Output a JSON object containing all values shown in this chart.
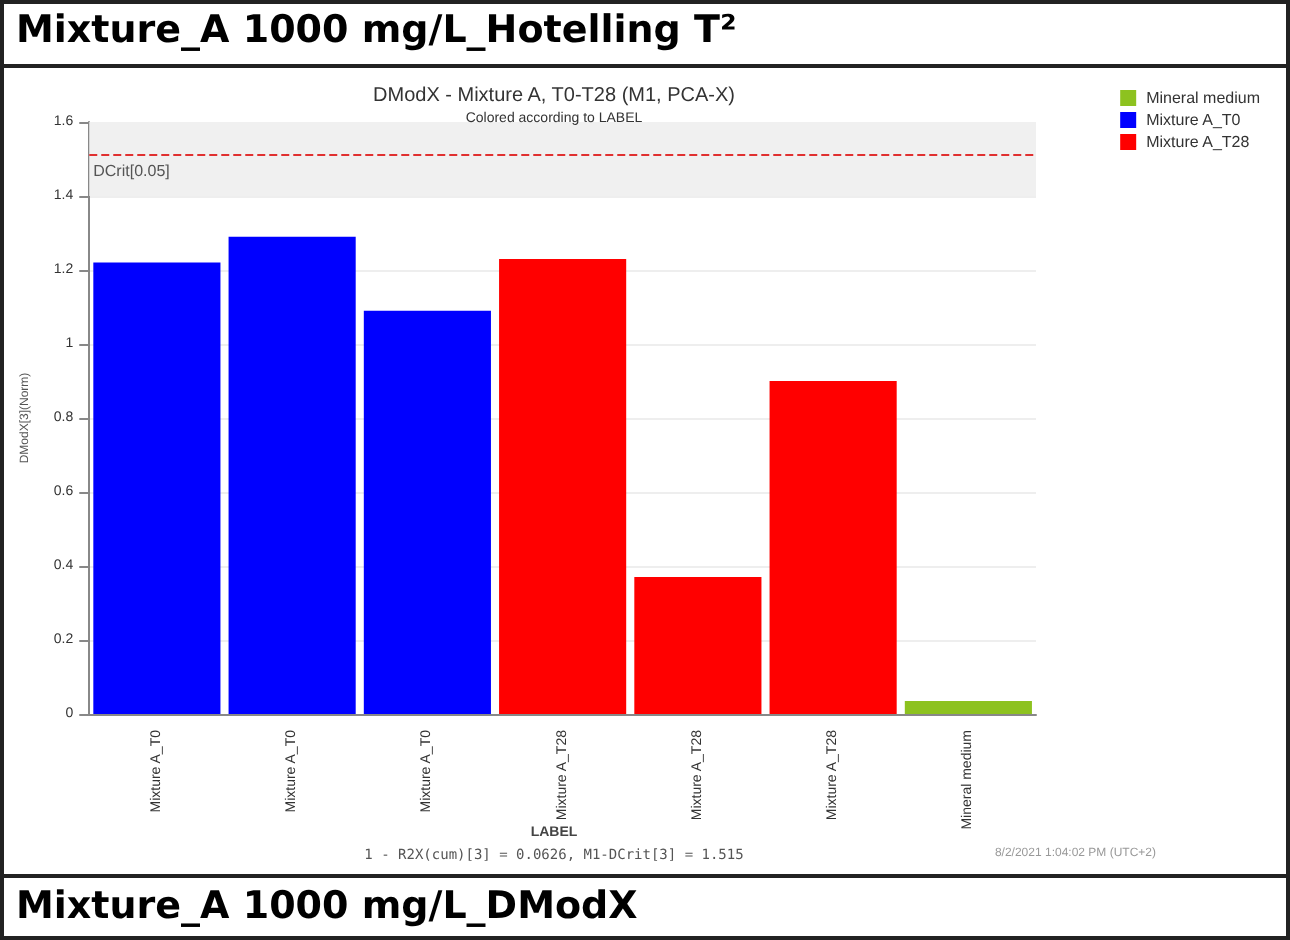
{
  "chart_data": {
    "type": "bar",
    "title": "Mixture_A 1000 mg/L_Hotelling T²",
    "subtitle": "DModX - Mixture A, T0-T28 (M1, PCA-X)",
    "xlabel": "LABEL",
    "ylabel": "DModX[3](Norm)",
    "annotations": [
      "Colored according to LABEL",
      "1 - R2X(cum)[3] = 0.0626, M1-DCrit[3] = 1.515",
      "8/2/2021 1:04:02 PM (UTC+2)",
      "Mixture_A 1000 mg/L_DModX"
    ],
    "categories": [
      "Mixture A_T0",
      "Mixture A_T0",
      "Mixture A_T0",
      "Mixture A_T28",
      "Mixture A_T28",
      "Mixture A_T28",
      "Mineral medium"
    ],
    "stacked": true,
    "series": [
      {
        "name": "Mineral medium",
        "color": "#8dc21f",
        "values": [
          null,
          null,
          null,
          null,
          null,
          null,
          0.035
        ]
      },
      {
        "name": "Mixture A_T0",
        "color": "#0000ff",
        "values": [
          1.22,
          1.29,
          1.09,
          null,
          null,
          null,
          null
        ]
      },
      {
        "name": "Mixture A_T28",
        "color": "#ff0000",
        "values": [
          null,
          null,
          null,
          1.23,
          0.37,
          0.9,
          null
        ]
      }
    ],
    "ylim": [
      0,
      1.6
    ],
    "yticks": [
      0,
      0.2,
      0.4,
      0.6,
      0.8,
      1,
      1.2,
      1.4,
      1.6
    ],
    "ref_lines": [
      {
        "axis": "y",
        "value": 1.515,
        "label": "DCrit[0.05]",
        "color": "#e03030",
        "line_style": "dashed"
      }
    ],
    "bands": [
      {
        "axis": "y",
        "from": 1.4,
        "to": 1.6,
        "color": "#f0f0f0"
      }
    ],
    "grid": "y",
    "legend": "top right"
  }
}
